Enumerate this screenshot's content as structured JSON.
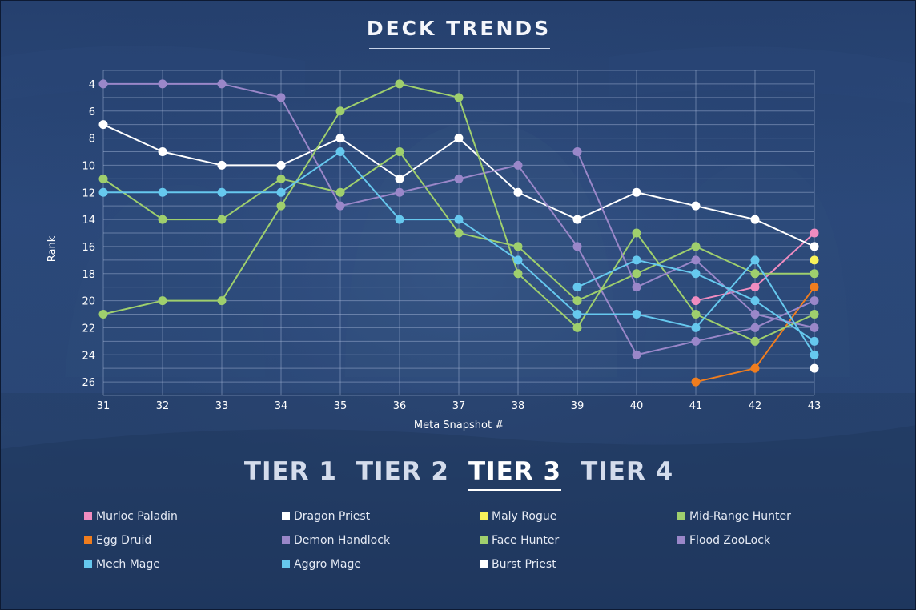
{
  "title": "DECK TRENDS",
  "tiers": [
    {
      "label": "TIER 1",
      "active": false
    },
    {
      "label": "TIER 2",
      "active": false
    },
    {
      "label": "TIER 3",
      "active": true
    },
    {
      "label": "TIER 4",
      "active": false
    }
  ],
  "chart_data": {
    "type": "line",
    "xlabel": "Meta Snapshot #",
    "ylabel": "Rank",
    "x": [
      31,
      32,
      33,
      34,
      35,
      36,
      37,
      38,
      39,
      40,
      41,
      42,
      43
    ],
    "ylim": [
      3,
      27
    ],
    "y_inverted": true,
    "yticks": [
      4,
      6,
      8,
      10,
      12,
      14,
      16,
      18,
      20,
      22,
      24,
      26
    ],
    "grid": true,
    "legend_position": "bottom",
    "series": [
      {
        "name": "Murloc Paladin",
        "color": "#f08cc0",
        "values": [
          null,
          null,
          null,
          null,
          null,
          null,
          null,
          null,
          null,
          null,
          20,
          19,
          15
        ]
      },
      {
        "name": "Dragon Priest",
        "color": "#ffffff",
        "values": [
          7,
          9,
          10,
          10,
          8,
          11,
          8,
          12,
          14,
          12,
          13,
          14,
          16
        ]
      },
      {
        "name": "Maly Rogue",
        "color": "#f7f25a",
        "values": [
          null,
          null,
          null,
          null,
          null,
          null,
          null,
          null,
          null,
          null,
          null,
          null,
          17
        ]
      },
      {
        "name": "Mid-Range Hunter",
        "color": "#9fcf6d",
        "values": [
          11,
          14,
          14,
          11,
          12,
          9,
          15,
          16,
          20,
          18,
          16,
          18,
          18
        ]
      },
      {
        "name": "Egg Druid",
        "color": "#f07d1e",
        "values": [
          null,
          null,
          null,
          null,
          null,
          null,
          null,
          null,
          null,
          null,
          26,
          25,
          19
        ]
      },
      {
        "name": "Demon Handlock",
        "color": "#9a87c9",
        "values": [
          4,
          4,
          4,
          5,
          13,
          12,
          11,
          10,
          16,
          24,
          23,
          22,
          20
        ]
      },
      {
        "name": "Face Hunter",
        "color": "#9fcf6d",
        "values": [
          21,
          20,
          20,
          13,
          6,
          4,
          5,
          18,
          22,
          15,
          21,
          23,
          21
        ]
      },
      {
        "name": "Flood ZooLock",
        "color": "#9a87c9",
        "values": [
          null,
          null,
          null,
          null,
          null,
          null,
          null,
          null,
          9,
          19,
          17,
          21,
          22
        ]
      },
      {
        "name": "Mech Mage",
        "color": "#66c8ee",
        "values": [
          null,
          null,
          null,
          null,
          null,
          null,
          null,
          null,
          19,
          17,
          18,
          20,
          23
        ]
      },
      {
        "name": "Aggro Mage",
        "color": "#66c8ee",
        "values": [
          12,
          12,
          12,
          12,
          9,
          14,
          14,
          17,
          21,
          21,
          22,
          17,
          24
        ]
      },
      {
        "name": "Burst Priest",
        "color": "#ffffff",
        "values": [
          null,
          null,
          null,
          null,
          null,
          null,
          null,
          null,
          null,
          null,
          null,
          null,
          25
        ]
      }
    ]
  }
}
